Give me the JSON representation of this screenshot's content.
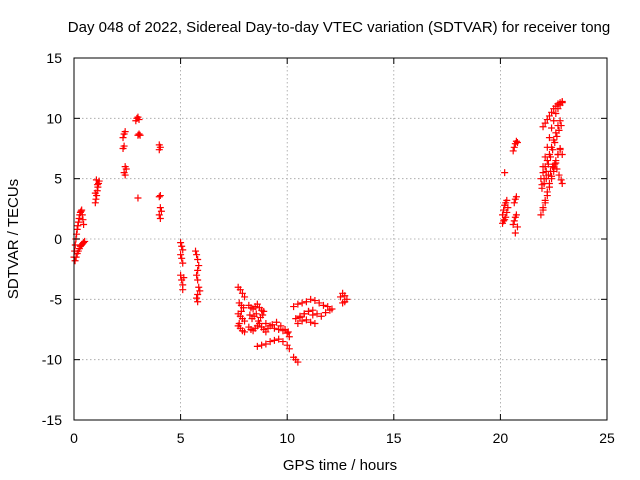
{
  "chart_data": {
    "type": "scatter",
    "title": "Day 048 of 2022, Sidereal Day-to-day VTEC variation (SDTVAR) for receiver tong",
    "xlabel": "GPS time / hours",
    "ylabel": "SDTVAR / TECUs",
    "xlim": [
      0,
      25
    ],
    "ylim": [
      -15,
      15
    ],
    "xticks": [
      0,
      5,
      10,
      15,
      20,
      25
    ],
    "yticks": [
      -15,
      -10,
      -5,
      0,
      5,
      10,
      15
    ],
    "xtick_labels": [
      "0",
      "5",
      "10",
      "15",
      "20",
      "25"
    ],
    "ytick_labels": [
      "-15",
      "-10",
      "-5",
      "0",
      "5",
      "10",
      "15"
    ],
    "grid": true,
    "marker": "+",
    "color": "#ff0000",
    "series": [
      {
        "name": "SDTVAR",
        "x": [
          0.0,
          0.03,
          0.06,
          0.09,
          0.12,
          0.15,
          0.18,
          0.21,
          0.24,
          0.27,
          0.3,
          0.33,
          0.36,
          0.39,
          0.42,
          0.45,
          0.05,
          0.1,
          0.15,
          0.2,
          0.25,
          0.3,
          0.35,
          0.4,
          0.45,
          0.5,
          1.0,
          1.03,
          1.06,
          1.09,
          1.12,
          1.15,
          1.18,
          1.0,
          1.05,
          1.1,
          2.3,
          2.35,
          2.4,
          2.3,
          2.35,
          2.4,
          2.45,
          2.35,
          2.4,
          2.9,
          2.95,
          3.0,
          3.05,
          3.0,
          3.05,
          3.1,
          3.0,
          4.0,
          4.05,
          4.0,
          4.05,
          4.0,
          4.05,
          4.1,
          4.0,
          4.05,
          5.0,
          5.05,
          5.1,
          5.0,
          5.05,
          5.1,
          5.0,
          5.05,
          5.1,
          5.15,
          5.1,
          5.7,
          5.75,
          5.8,
          5.85,
          5.8,
          5.75,
          5.8,
          5.85,
          5.9,
          5.8,
          5.75,
          5.8,
          7.7,
          7.8,
          7.9,
          8.0,
          7.75,
          7.85,
          7.95,
          7.7,
          7.8,
          7.9,
          8.0,
          7.7,
          7.8,
          7.9,
          8.0,
          7.75,
          7.85,
          8.2,
          8.3,
          8.4,
          8.5,
          8.6,
          8.7,
          8.8,
          8.9,
          8.25,
          8.35,
          8.45,
          8.55,
          8.65,
          8.75,
          8.85,
          8.2,
          8.3,
          8.4,
          8.5,
          8.6,
          8.7,
          8.8,
          8.9,
          9.0,
          8.6,
          8.8,
          9.0,
          9.2,
          9.4,
          9.6,
          9.8,
          10.0,
          10.1,
          9.0,
          9.2,
          9.4,
          9.6,
          9.8,
          10.0,
          10.1,
          9.1,
          9.3,
          9.5,
          9.7,
          9.9,
          10.05,
          10.3,
          10.4,
          10.5,
          10.3,
          10.5,
          10.7,
          10.9,
          11.1,
          11.3,
          11.5,
          11.7,
          11.9,
          12.1,
          10.4,
          10.6,
          10.8,
          11.0,
          11.2,
          11.4,
          11.6,
          11.8,
          12.0,
          10.5,
          10.7,
          10.9,
          11.1,
          11.3,
          10.6,
          10.8,
          11.0,
          11.2,
          12.5,
          12.6,
          12.7,
          12.8,
          12.6,
          12.7,
          20.1,
          20.15,
          20.2,
          20.25,
          20.3,
          20.1,
          20.15,
          20.2,
          20.25,
          20.3,
          20.35,
          20.2,
          20.6,
          20.65,
          20.7,
          20.75,
          20.8,
          20.65,
          20.7,
          20.75,
          20.6,
          20.65,
          20.7,
          20.75,
          20.8,
          20.7,
          21.9,
          22.0,
          22.1,
          22.2,
          22.3,
          22.4,
          22.5,
          22.6,
          22.7,
          22.8,
          22.9,
          21.95,
          22.05,
          22.15,
          22.25,
          22.35,
          22.45,
          22.55,
          22.65,
          22.75,
          22.85,
          21.9,
          22.0,
          22.1,
          22.2,
          22.3,
          22.4,
          22.5,
          22.6,
          22.7,
          22.8,
          22.0,
          22.1,
          22.2,
          22.3,
          22.4,
          22.5,
          22.6,
          22.7,
          22.8,
          22.9,
          21.95,
          22.05,
          22.15,
          22.25,
          22.35,
          22.45,
          22.55,
          22.65,
          22.75,
          22.85,
          22.9,
          22.0,
          22.1,
          22.2,
          22.3,
          22.4,
          22.5,
          22.6,
          22.7,
          22.8,
          22.0,
          22.1,
          22.2,
          22.3,
          22.4,
          22.5,
          22.6,
          22.7,
          22.8,
          22.9
        ],
        "y": [
          -1.5,
          -1.0,
          -0.5,
          0.0,
          0.4,
          0.8,
          1.1,
          1.4,
          1.7,
          2.0,
          2.2,
          2.3,
          2.4,
          2.0,
          1.6,
          1.2,
          -1.8,
          -1.5,
          -1.2,
          -1.0,
          -0.8,
          -0.6,
          -0.5,
          -0.4,
          -0.3,
          -0.2,
          3.0,
          3.3,
          3.6,
          4.0,
          4.3,
          4.6,
          4.8,
          3.8,
          4.9,
          4.5,
          8.4,
          8.7,
          8.9,
          7.5,
          7.7,
          6.0,
          5.8,
          5.5,
          5.3,
          9.8,
          10.0,
          10.1,
          9.9,
          8.6,
          8.7,
          8.6,
          3.4,
          7.8,
          7.6,
          7.4,
          3.6,
          3.5,
          2.6,
          2.3,
          2.0,
          1.7,
          -0.3,
          -0.6,
          -0.9,
          -1.3,
          -1.6,
          -2.0,
          -3.0,
          -3.4,
          -3.8,
          -3.2,
          -4.2,
          -1.0,
          -1.3,
          -1.7,
          -2.2,
          -2.6,
          -3.0,
          -3.4,
          -4.0,
          -4.3,
          -4.6,
          -4.9,
          -5.2,
          -4.0,
          -4.2,
          -4.5,
          -4.8,
          -5.3,
          -5.5,
          -5.7,
          -6.2,
          -6.4,
          -6.6,
          -6.8,
          -7.2,
          -7.4,
          -7.6,
          -7.7,
          -7.0,
          -6.0,
          -5.5,
          -5.7,
          -5.8,
          -5.6,
          -5.4,
          -5.7,
          -5.9,
          -6.0,
          -6.3,
          -6.6,
          -6.4,
          -6.2,
          -6.8,
          -6.5,
          -6.3,
          -7.3,
          -7.5,
          -7.6,
          -7.4,
          -7.2,
          -7.0,
          -7.3,
          -7.5,
          -7.7,
          -8.9,
          -8.8,
          -8.7,
          -8.5,
          -8.4,
          -8.3,
          -8.5,
          -8.8,
          -9.1,
          -7.0,
          -7.2,
          -7.4,
          -7.5,
          -7.6,
          -7.8,
          -8.1,
          -7.4,
          -7.1,
          -6.9,
          -7.2,
          -7.5,
          -7.7,
          -9.8,
          -10.0,
          -10.2,
          -5.6,
          -5.4,
          -5.3,
          -5.2,
          -5.0,
          -5.1,
          -5.3,
          -5.5,
          -5.6,
          -5.8,
          -6.6,
          -6.4,
          -6.2,
          -6.0,
          -5.9,
          -6.2,
          -6.4,
          -6.1,
          -5.9,
          -7.0,
          -6.8,
          -6.7,
          -6.9,
          -7.0,
          -6.5,
          -6.2,
          -6.0,
          -6.3,
          -4.8,
          -4.5,
          -4.7,
          -5.0,
          -5.3,
          -5.2,
          2.0,
          2.4,
          2.8,
          3.0,
          3.2,
          1.3,
          1.5,
          1.6,
          1.8,
          2.2,
          2.6,
          5.5,
          7.3,
          7.6,
          7.9,
          8.1,
          8.0,
          3.0,
          3.3,
          3.5,
          1.2,
          1.5,
          1.8,
          2.0,
          1.0,
          0.5,
          2.0,
          2.6,
          3.2,
          3.9,
          4.6,
          5.2,
          5.9,
          6.5,
          7.0,
          7.4,
          7.0,
          4.5,
          5.0,
          5.6,
          6.2,
          6.8,
          7.4,
          8.0,
          8.5,
          9.0,
          9.4,
          5.0,
          5.5,
          6.0,
          6.5,
          7.0,
          7.6,
          8.2,
          8.8,
          9.4,
          9.8,
          6.0,
          6.8,
          7.6,
          8.4,
          9.2,
          9.8,
          10.4,
          10.8,
          11.1,
          11.3,
          4.2,
          4.6,
          5.0,
          5.3,
          5.6,
          6.0,
          6.2,
          5.8,
          5.3,
          4.9,
          4.6,
          2.4,
          3.0,
          3.6,
          4.3,
          5.0,
          5.6,
          6.3,
          7.0,
          7.5,
          9.3,
          9.6,
          9.9,
          10.2,
          10.5,
          10.8,
          11.0,
          11.2,
          11.3,
          11.4
        ]
      }
    ]
  }
}
